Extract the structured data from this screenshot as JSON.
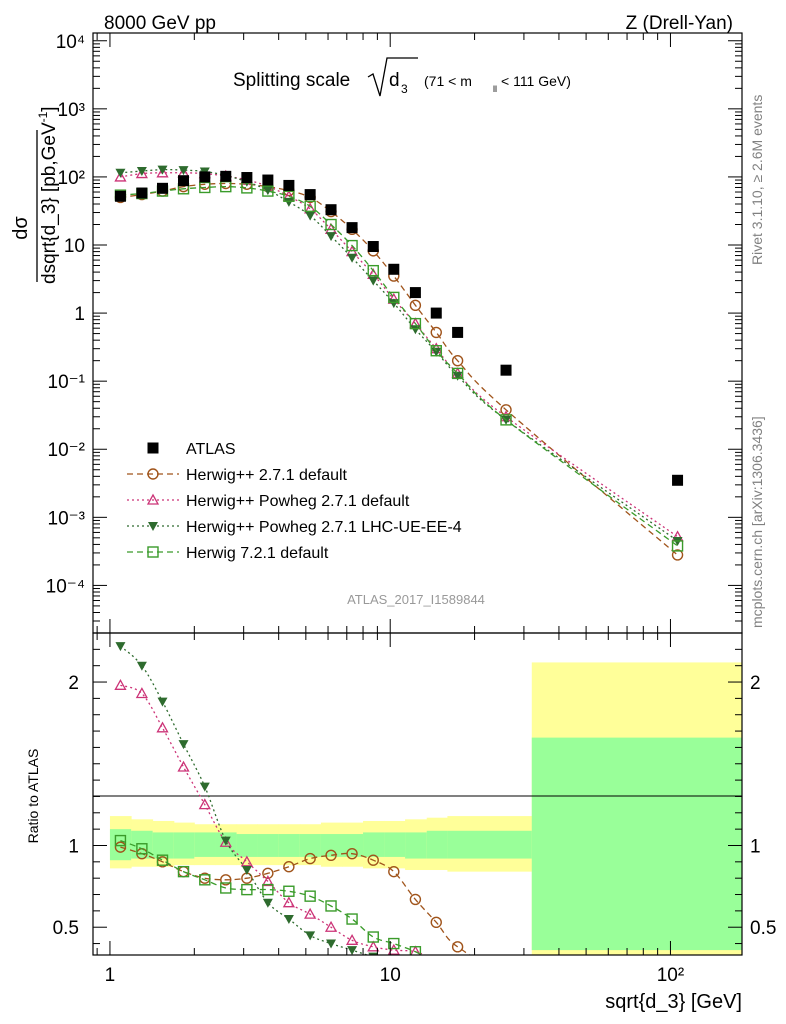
{
  "header": {
    "left": "8000 GeV pp",
    "right": "Z (Drell-Yan)"
  },
  "side_labels": {
    "rivet": "Rivet 3.1.10, ≥ 2.6M events",
    "mcplots": "mcplots.cern.ch [arXiv:1306.3436]"
  },
  "chart_data": {
    "type": "line",
    "title_main": "Splitting scale",
    "title_sqrt_arg": "d",
    "title_sqrt_sub": "3",
    "title_range_pre": "(71 < m",
    "title_range_sub": "ll",
    "title_range_post": " < 111 GeV)",
    "analysis_tag": "ATLAS_2017_I1589844",
    "xlabel": "sqrt{d_3} [GeV]",
    "xscale": "log",
    "xlim": [
      0.87,
      180
    ],
    "ylabel": "dσ/dsqrt{d_3} [pb,GeV⁻¹]",
    "ylabel_num": "dσ",
    "ylabel_den": "dsqrt{d_3} [pb,GeV",
    "ylabel_den_sup": "-1",
    "ylabel_den_close": "]",
    "yscale": "log",
    "ylim": [
      2e-05,
      13000
    ],
    "ratio_ylabel": "Ratio to ATLAS",
    "ratio_ylim": [
      0.33,
      2.3
    ],
    "x_ticks": [
      "1",
      "10",
      "10²"
    ],
    "y_ticks": [
      "10⁻⁴",
      "10⁻³",
      "10⁻²",
      "10⁻¹",
      "1",
      "10",
      "10²",
      "10³",
      "10⁴"
    ],
    "ratio_ticks": [
      "0.5",
      "1",
      "2"
    ],
    "legend": [
      "ATLAS",
      "Herwig++ 2.7.1 default",
      "Herwig++ Powheg 2.7.1 default",
      "Herwig++ Powheg 2.7.1 LHC-UE-EE-4",
      "Herwig 7.2.1 default"
    ],
    "legend_placement": "lower-left",
    "series": [
      {
        "style": "data",
        "marker": "filled-square",
        "color": "#000000",
        "x": [
          1.09,
          1.3,
          1.54,
          1.83,
          2.18,
          2.59,
          3.08,
          3.66,
          4.35,
          5.18,
          6.15,
          7.31,
          8.7,
          10.3,
          12.3,
          14.6,
          17.4,
          25.9,
          106
        ],
        "y": [
          52,
          58,
          68,
          88,
          100,
          102,
          98,
          90,
          75,
          55,
          33,
          18,
          9.5,
          4.4,
          2.0,
          1.0,
          0.52,
          0.145,
          0.0035
        ]
      },
      {
        "style": "dashed",
        "marker": "open-circle",
        "color": "#a0541b",
        "x": [
          1.09,
          1.3,
          1.54,
          1.83,
          2.18,
          2.59,
          3.08,
          3.66,
          4.35,
          5.18,
          6.15,
          7.31,
          8.7,
          10.3,
          12.3,
          14.6,
          17.4,
          25.9,
          106
        ],
        "y": [
          50,
          55,
          62,
          72,
          78,
          80,
          78,
          72,
          63,
          50,
          31,
          17,
          8.2,
          3.5,
          1.3,
          0.52,
          0.2,
          0.038,
          0.00028
        ]
      },
      {
        "style": "dotted",
        "marker": "open-triangle",
        "color": "#cc3377",
        "x": [
          1.09,
          1.3,
          1.54,
          1.83,
          2.18,
          2.59,
          3.08,
          3.66,
          4.35,
          5.18,
          6.15,
          7.31,
          8.7,
          10.3,
          12.3,
          14.6,
          17.4,
          25.9,
          106
        ],
        "y": [
          100,
          112,
          115,
          115,
          112,
          103,
          90,
          73,
          52,
          34,
          17,
          8.0,
          3.7,
          1.6,
          0.7,
          0.3,
          0.13,
          0.03,
          0.00052
        ]
      },
      {
        "style": "dotted",
        "marker": "filled-triangle-down",
        "color": "#2e6b2e",
        "x": [
          1.09,
          1.3,
          1.54,
          1.83,
          2.18,
          2.59,
          3.08,
          3.66,
          4.35,
          5.18,
          6.15,
          7.31,
          8.7,
          10.3,
          12.3,
          14.6,
          17.4,
          25.9,
          106
        ],
        "y": [
          115,
          122,
          128,
          126,
          120,
          105,
          85,
          64,
          43,
          27,
          13.5,
          6.5,
          3.0,
          1.4,
          0.58,
          0.27,
          0.12,
          0.027,
          0.00045
        ]
      },
      {
        "style": "dashed",
        "marker": "open-square",
        "color": "#3a9b2a",
        "x": [
          1.09,
          1.3,
          1.54,
          1.83,
          2.18,
          2.59,
          3.08,
          3.66,
          4.35,
          5.18,
          6.15,
          7.31,
          8.7,
          10.3,
          12.3,
          14.6,
          17.4,
          25.9,
          106
        ],
        "y": [
          54,
          57,
          62,
          67,
          70,
          72,
          69,
          62,
          52,
          37,
          20,
          9.8,
          4.2,
          1.7,
          0.7,
          0.28,
          0.13,
          0.027,
          0.00038
        ]
      }
    ],
    "ratio_series": [
      {
        "color": "#a0541b",
        "y": [
          0.99,
          0.95,
          0.9,
          0.84,
          0.8,
          0.79,
          0.8,
          0.83,
          0.87,
          0.92,
          0.94,
          0.95,
          0.91,
          0.84,
          0.67,
          0.53,
          0.38,
          0.26,
          0.08
        ]
      },
      {
        "color": "#cc3377",
        "y": [
          1.98,
          1.93,
          1.72,
          1.48,
          1.25,
          1.02,
          0.9,
          0.78,
          0.65,
          0.58,
          0.5,
          0.42,
          0.38,
          0.36,
          0.35,
          0.3,
          0.25,
          0.2,
          0.15
        ]
      },
      {
        "color": "#2e6b2e",
        "y": [
          2.22,
          2.1,
          1.88,
          1.62,
          1.36,
          1.03,
          0.85,
          0.65,
          0.55,
          0.45,
          0.4,
          0.36,
          0.32,
          0.3,
          0.29,
          0.27,
          0.23,
          0.19,
          0.13
        ]
      },
      {
        "color": "#3a9b2a",
        "y": [
          1.03,
          0.98,
          0.91,
          0.84,
          0.79,
          0.74,
          0.73,
          0.73,
          0.72,
          0.69,
          0.63,
          0.55,
          0.44,
          0.4,
          0.35,
          0.28,
          0.25,
          0.19,
          0.11
        ]
      }
    ],
    "bands": {
      "edges": [
        1.0,
        1.19,
        1.42,
        1.69,
        2.0,
        2.38,
        2.83,
        3.36,
        4.0,
        4.76,
        5.66,
        6.73,
        8.0,
        9.51,
        11.3,
        13.5,
        16.0,
        32.0,
        180
      ],
      "inner": [
        [
          0.91,
          1.1
        ],
        [
          0.92,
          1.09
        ],
        [
          0.92,
          1.08
        ],
        [
          0.92,
          1.08
        ],
        [
          0.93,
          1.08
        ],
        [
          0.93,
          1.08
        ],
        [
          0.93,
          1.07
        ],
        [
          0.93,
          1.07
        ],
        [
          0.93,
          1.07
        ],
        [
          0.93,
          1.07
        ],
        [
          0.93,
          1.07
        ],
        [
          0.93,
          1.07
        ],
        [
          0.93,
          1.08
        ],
        [
          0.93,
          1.08
        ],
        [
          0.92,
          1.08
        ],
        [
          0.92,
          1.09
        ],
        [
          0.92,
          1.09
        ],
        [
          0.36,
          1.66
        ]
      ],
      "outer": [
        [
          0.86,
          1.18
        ],
        [
          0.87,
          1.16
        ],
        [
          0.87,
          1.15
        ],
        [
          0.88,
          1.14
        ],
        [
          0.88,
          1.13
        ],
        [
          0.88,
          1.13
        ],
        [
          0.88,
          1.13
        ],
        [
          0.88,
          1.13
        ],
        [
          0.88,
          1.13
        ],
        [
          0.88,
          1.13
        ],
        [
          0.87,
          1.14
        ],
        [
          0.87,
          1.14
        ],
        [
          0.86,
          1.15
        ],
        [
          0.86,
          1.15
        ],
        [
          0.85,
          1.16
        ],
        [
          0.85,
          1.17
        ],
        [
          0.84,
          1.18
        ],
        [
          0.33,
          2.12
        ]
      ],
      "inner_color": "#99ff99",
      "outer_color": "#ffff99"
    }
  }
}
